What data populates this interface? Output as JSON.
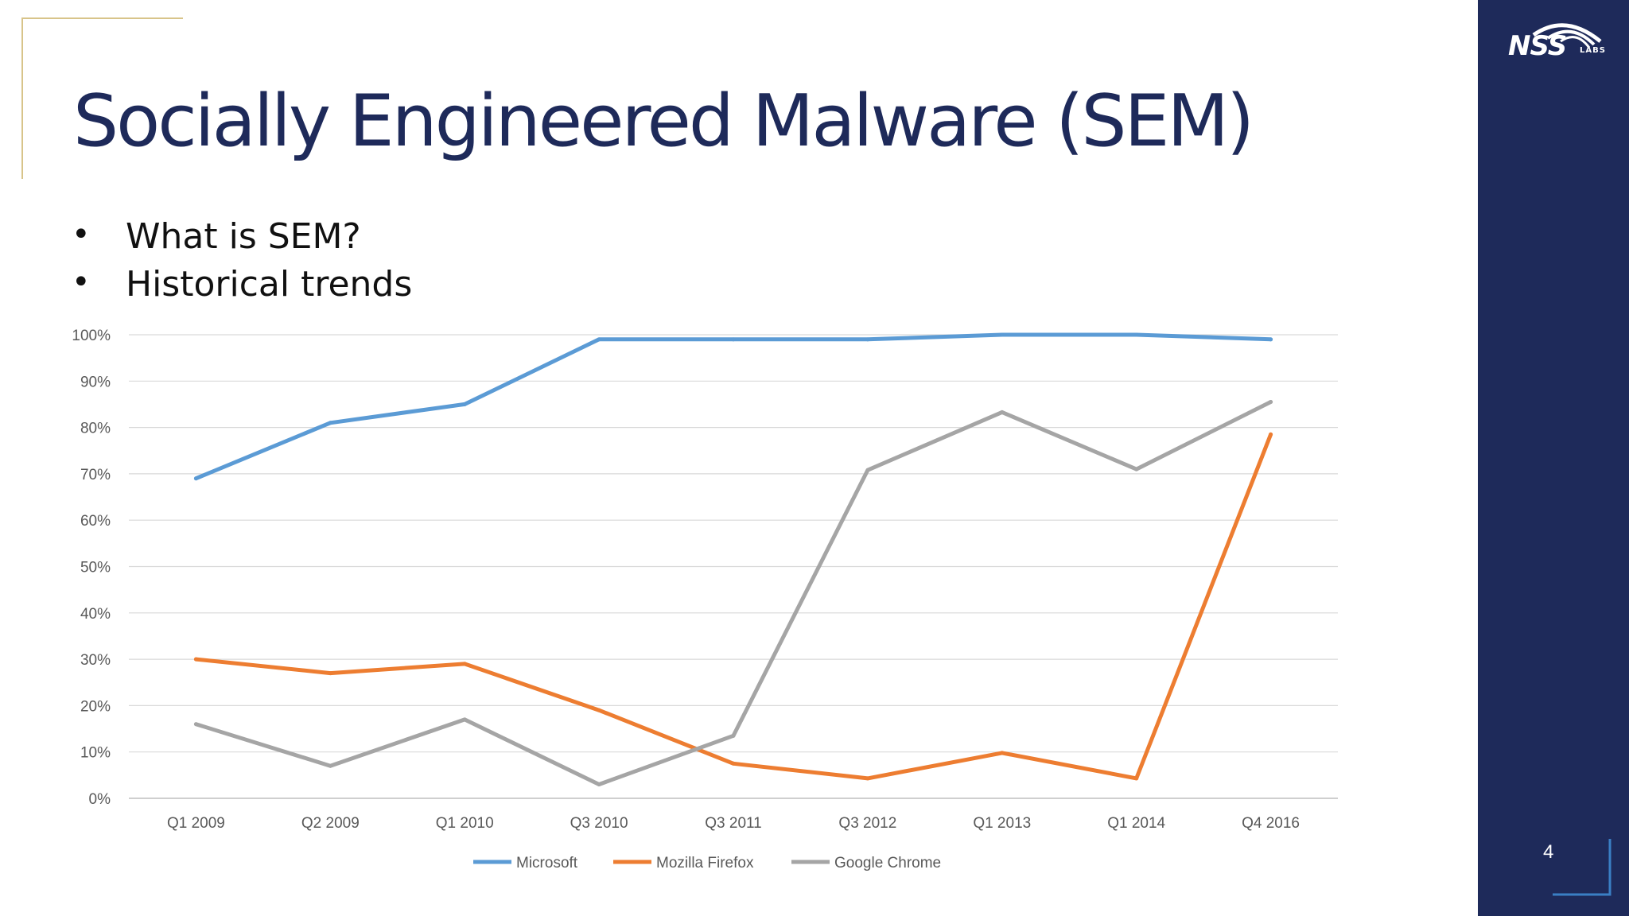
{
  "slide": {
    "title": "Socially Engineered Malware (SEM)",
    "bullets": [
      "What is SEM?",
      "Historical trends"
    ],
    "page_number": "4",
    "logo": {
      "text": "NSS",
      "sub": "LABS",
      "icon": "nss-labs-logo"
    },
    "colors": {
      "navy": "#1e2a5a",
      "gold": "#d8c48a",
      "corner_blue": "#3a7fc4"
    }
  },
  "chart_data": {
    "type": "line",
    "categories": [
      "Q1 2009",
      "Q2 2009",
      "Q1 2010",
      "Q3 2010",
      "Q3 2011",
      "Q3 2012",
      "Q1 2013",
      "Q1 2014",
      "Q4 2016"
    ],
    "series": [
      {
        "name": "Microsoft",
        "color": "#5b9bd5",
        "values": [
          69,
          81,
          85,
          99,
          99,
          99,
          100,
          100,
          99
        ]
      },
      {
        "name": "Mozilla Firefox",
        "color": "#ed7d31",
        "values": [
          30,
          27,
          29,
          19,
          7.5,
          4.3,
          9.8,
          4.3,
          78.5
        ]
      },
      {
        "name": "Google Chrome",
        "color": "#a5a5a5",
        "values": [
          16,
          7,
          17,
          3,
          13.5,
          70.8,
          83.3,
          71,
          85.5
        ]
      }
    ],
    "yticks": [
      "0%",
      "10%",
      "20%",
      "30%",
      "40%",
      "50%",
      "60%",
      "70%",
      "80%",
      "90%",
      "100%"
    ],
    "ylim": [
      0,
      100
    ],
    "xlabel": "",
    "ylabel": "",
    "grid": true,
    "legend_position": "bottom"
  }
}
